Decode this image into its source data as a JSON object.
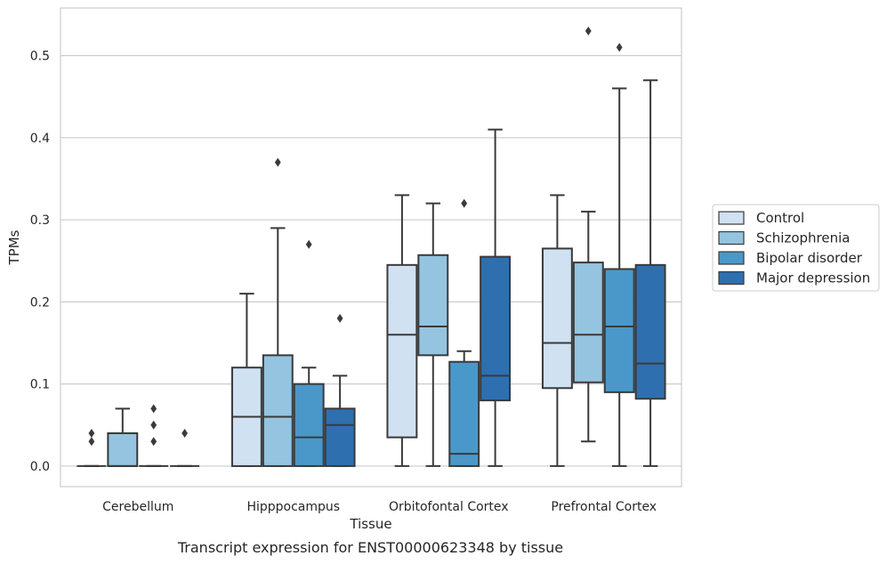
{
  "caption": "Transcript expression for ENST00000623348 by tissue",
  "chart_data": {
    "type": "box",
    "xlabel": "Tissue",
    "ylabel": "TPMs",
    "ylim": [
      -0.025,
      0.558
    ],
    "yticks": [
      0.0,
      0.1,
      0.2,
      0.3,
      0.4,
      0.5
    ],
    "ytick_labels": [
      "0.0",
      "0.1",
      "0.2",
      "0.3",
      "0.4",
      "0.5"
    ],
    "grid": "horizontal",
    "legend_position": "right",
    "categories": [
      "Cerebellum",
      "Hipppocampus",
      "Orbitofontal Cortex",
      "Prefrontal Cortex"
    ],
    "series": [
      {
        "name": "Control",
        "color": "#d0e1f2",
        "boxes": [
          {
            "min": 0.0,
            "q1": 0.0,
            "median": 0.0,
            "q3": 0.0,
            "max": 0.0,
            "outliers": [
              0.03,
              0.04
            ]
          },
          {
            "min": 0.0,
            "q1": 0.0,
            "median": 0.06,
            "q3": 0.12,
            "max": 0.21,
            "outliers": []
          },
          {
            "min": 0.0,
            "q1": 0.035,
            "median": 0.16,
            "q3": 0.245,
            "max": 0.33,
            "outliers": []
          },
          {
            "min": 0.0,
            "q1": 0.095,
            "median": 0.15,
            "q3": 0.265,
            "max": 0.33,
            "outliers": []
          }
        ]
      },
      {
        "name": "Schizophrenia",
        "color": "#94c4df",
        "boxes": [
          {
            "min": 0.0,
            "q1": 0.0,
            "median": 0.0,
            "q3": 0.04,
            "max": 0.07,
            "outliers": []
          },
          {
            "min": 0.0,
            "q1": 0.0,
            "median": 0.06,
            "q3": 0.135,
            "max": 0.29,
            "outliers": [
              0.37
            ]
          },
          {
            "min": 0.0,
            "q1": 0.135,
            "median": 0.17,
            "q3": 0.257,
            "max": 0.32,
            "outliers": []
          },
          {
            "min": 0.03,
            "q1": 0.102,
            "median": 0.16,
            "q3": 0.248,
            "max": 0.31,
            "outliers": [
              0.53
            ]
          }
        ]
      },
      {
        "name": "Bipolar disorder",
        "color": "#4a98c9",
        "boxes": [
          {
            "min": 0.0,
            "q1": 0.0,
            "median": 0.0,
            "q3": 0.0,
            "max": 0.0,
            "outliers": [
              0.03,
              0.05,
              0.07
            ]
          },
          {
            "min": 0.0,
            "q1": 0.0,
            "median": 0.035,
            "q3": 0.1,
            "max": 0.12,
            "outliers": [
              0.27
            ]
          },
          {
            "min": 0.0,
            "q1": 0.0,
            "median": 0.015,
            "q3": 0.127,
            "max": 0.14,
            "outliers": [
              0.32
            ]
          },
          {
            "min": 0.0,
            "q1": 0.09,
            "median": 0.17,
            "q3": 0.24,
            "max": 0.46,
            "outliers": [
              0.51
            ]
          }
        ]
      },
      {
        "name": "Major depression",
        "color": "#2e6fb0",
        "boxes": [
          {
            "min": 0.0,
            "q1": 0.0,
            "median": 0.0,
            "q3": 0.0,
            "max": 0.0,
            "outliers": [
              0.04
            ]
          },
          {
            "min": 0.0,
            "q1": 0.0,
            "median": 0.05,
            "q3": 0.07,
            "max": 0.11,
            "outliers": [
              0.18
            ]
          },
          {
            "min": 0.0,
            "q1": 0.08,
            "median": 0.11,
            "q3": 0.255,
            "max": 0.41,
            "outliers": []
          },
          {
            "min": 0.0,
            "q1": 0.082,
            "median": 0.125,
            "q3": 0.245,
            "max": 0.47,
            "outliers": []
          }
        ]
      }
    ]
  }
}
